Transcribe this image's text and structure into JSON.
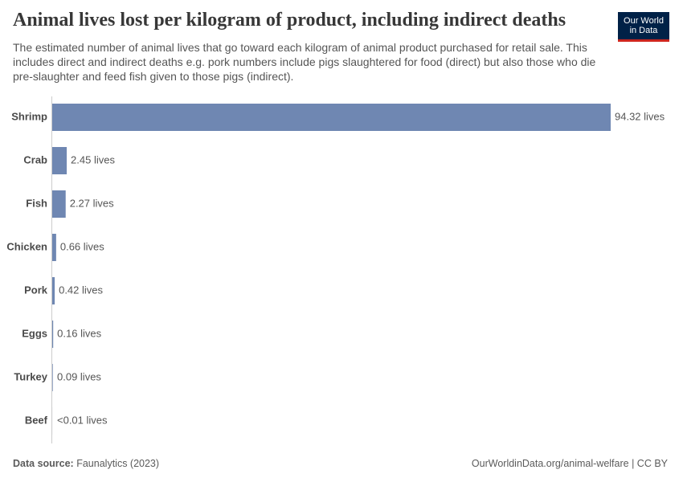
{
  "chart_data": {
    "type": "bar",
    "orientation": "horizontal",
    "title": "Animal lives lost per kilogram of product, including indirect deaths",
    "subtitle": "The estimated number of animal lives that go toward each kilogram of animal product purchased for retail sale. This includes direct and indirect deaths e.g. pork numbers include pigs slaughtered for food (direct) but also those who die pre-slaughter and feed fish given to those pigs (indirect).",
    "categories": [
      "Shrimp",
      "Crab",
      "Fish",
      "Chicken",
      "Pork",
      "Eggs",
      "Turkey",
      "Beef"
    ],
    "values": [
      94.32,
      2.45,
      2.27,
      0.66,
      0.42,
      0.16,
      0.09,
      0.005
    ],
    "value_labels": [
      "94.32 lives",
      "2.45 lives",
      "2.27 lives",
      "0.66 lives",
      "0.42 lives",
      "0.16 lives",
      "0.09 lives",
      "<0.01 lives"
    ],
    "color": "#6f87b2",
    "source_label": "Data source:",
    "source": "Faunalytics (2023)",
    "url": "OurWorldinData.org/animal-welfare | CC BY",
    "logo": [
      "Our World",
      "in Data"
    ]
  }
}
